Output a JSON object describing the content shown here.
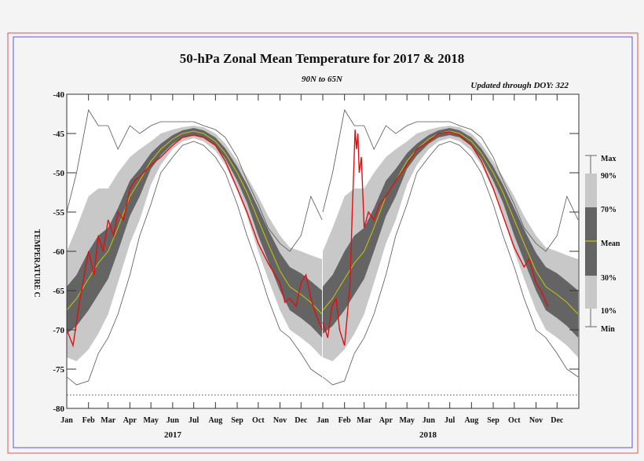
{
  "chart_data": {
    "type": "area",
    "title": "50-hPa Zonal Mean Temperature for 2017 & 2018",
    "subtitle": "90N to 65N",
    "note": "Updated through DOY: 322",
    "ylabel": "TEMPERATURE C",
    "ylim": [
      -80,
      -40
    ],
    "yticks": [
      -40,
      -45,
      -50,
      -55,
      -60,
      -65,
      -70,
      -75,
      -80
    ],
    "xticks": [
      "Jan",
      "Feb",
      "Mar",
      "Apr",
      "May",
      "Jun",
      "Jul",
      "Aug",
      "Sep",
      "Oct",
      "Nov",
      "Dec",
      "Jan",
      "Feb",
      "Mar",
      "Apr",
      "May",
      "Jun",
      "Jul",
      "Aug",
      "Sep",
      "Oct",
      "Nov",
      "Dec"
    ],
    "years": [
      "2017",
      "2018"
    ],
    "reference_line": -78.3,
    "legend": {
      "placement": "right",
      "labels": {
        "max": "Max",
        "p90": "90%",
        "p70": "70%",
        "mean": "Mean",
        "p30": "30%",
        "p10": "10%",
        "min": "Min"
      }
    },
    "colors": {
      "outer_band": "#c8c8c8",
      "inner_band": "#646464",
      "mean": "#c8c800",
      "current": "#e01010",
      "extremes": "#555555",
      "reference": "#3333dd",
      "frame_outer": "#e05555",
      "frame_inner": "#5555ee"
    },
    "climatology": {
      "doy": [
        1,
        15,
        32,
        46,
        60,
        74,
        91,
        105,
        121,
        135,
        152,
        166,
        182,
        196,
        213,
        227,
        244,
        258,
        274,
        288,
        305,
        319,
        335,
        349,
        365
      ],
      "max": [
        -55,
        -50,
        -42,
        -44,
        -44,
        -47,
        -44,
        -45,
        -44,
        -43.5,
        -43.5,
        -43.5,
        -43.5,
        -44,
        -44.5,
        -45.5,
        -48,
        -51,
        -54,
        -57,
        -59,
        -60,
        -58,
        -53,
        -56
      ],
      "p90": [
        -60,
        -57,
        -53,
        -52,
        -52,
        -50,
        -48,
        -47,
        -46,
        -45,
        -44.5,
        -44.2,
        -44,
        -44.2,
        -45,
        -46.3,
        -48.5,
        -50.5,
        -53,
        -55.5,
        -58,
        -59.5,
        -60,
        -60.5,
        -61
      ],
      "p70": [
        -64.5,
        -63,
        -60,
        -58,
        -57,
        -54.5,
        -51,
        -49.5,
        -47.5,
        -46.3,
        -45.2,
        -44.6,
        -44.3,
        -44.6,
        -45.5,
        -46.9,
        -49.2,
        -51.5,
        -54.5,
        -57.2,
        -60.2,
        -62,
        -62.8,
        -63.8,
        -65
      ],
      "mean": [
        -67.5,
        -66,
        -63.5,
        -61.5,
        -60,
        -57,
        -53,
        -51,
        -48.5,
        -47,
        -45.7,
        -45,
        -44.7,
        -45,
        -46,
        -47.5,
        -50,
        -52.5,
        -56,
        -59,
        -62.5,
        -64.5,
        -65.5,
        -66.5,
        -68
      ],
      "p30": [
        -70.5,
        -69.5,
        -67.5,
        -65.5,
        -63.5,
        -60,
        -55.5,
        -53,
        -49.5,
        -47.8,
        -46.3,
        -45.5,
        -45.2,
        -45.5,
        -46.6,
        -48.2,
        -51,
        -53.8,
        -58,
        -61.2,
        -65,
        -67.5,
        -68.5,
        -69.5,
        -71
      ],
      "p10": [
        -73.5,
        -74,
        -72.5,
        -70.5,
        -68,
        -64,
        -59,
        -56,
        -51.5,
        -49,
        -47,
        -46,
        -45.6,
        -46,
        -47.2,
        -49,
        -52.2,
        -55.5,
        -60,
        -63.5,
        -67.5,
        -70,
        -71,
        -72,
        -73.5
      ],
      "min": [
        -76,
        -77,
        -76.5,
        -73,
        -71,
        -68,
        -63,
        -58,
        -54,
        -50,
        -48,
        -46.5,
        -46,
        -46.5,
        -48,
        -50,
        -54,
        -58,
        -62,
        -66,
        -70,
        -71,
        -73,
        -75,
        -76
      ]
    },
    "series": [
      {
        "name": "2017",
        "points": [
          [
            1,
            -70
          ],
          [
            10,
            -72
          ],
          [
            20,
            -66
          ],
          [
            32,
            -60
          ],
          [
            40,
            -63
          ],
          [
            46,
            -58
          ],
          [
            53,
            -60
          ],
          [
            60,
            -56
          ],
          [
            68,
            -58
          ],
          [
            74,
            -55
          ],
          [
            82,
            -56
          ],
          [
            91,
            -52
          ],
          [
            98,
            -51
          ],
          [
            105,
            -50.5
          ],
          [
            121,
            -49
          ],
          [
            135,
            -48
          ],
          [
            152,
            -46.5
          ],
          [
            166,
            -45.5
          ],
          [
            182,
            -45.2
          ],
          [
            196,
            -45.5
          ],
          [
            213,
            -46.5
          ],
          [
            227,
            -48.5
          ],
          [
            244,
            -52
          ],
          [
            258,
            -55
          ],
          [
            274,
            -59
          ],
          [
            288,
            -61.5
          ],
          [
            298,
            -63
          ],
          [
            305,
            -64
          ],
          [
            312,
            -66.5
          ],
          [
            319,
            -66
          ],
          [
            328,
            -67
          ],
          [
            335,
            -64
          ],
          [
            342,
            -63
          ],
          [
            349,
            -66
          ],
          [
            356,
            -68
          ],
          [
            365,
            -70
          ]
        ]
      },
      {
        "name": "2018",
        "points": [
          [
            1,
            -69
          ],
          [
            8,
            -71
          ],
          [
            14,
            -67
          ],
          [
            20,
            -66
          ],
          [
            25,
            -70
          ],
          [
            32,
            -72
          ],
          [
            36,
            -68
          ],
          [
            40,
            -64
          ],
          [
            43,
            -55
          ],
          [
            45,
            -50
          ],
          [
            47,
            -44.5
          ],
          [
            49,
            -47
          ],
          [
            51,
            -45
          ],
          [
            53,
            -50
          ],
          [
            56,
            -48
          ],
          [
            60,
            -57
          ],
          [
            66,
            -55
          ],
          [
            74,
            -56
          ],
          [
            82,
            -54
          ],
          [
            91,
            -53
          ],
          [
            105,
            -51
          ],
          [
            121,
            -49
          ],
          [
            135,
            -47
          ],
          [
            152,
            -46
          ],
          [
            166,
            -45
          ],
          [
            182,
            -44.8
          ],
          [
            196,
            -45.2
          ],
          [
            213,
            -46.5
          ],
          [
            227,
            -48.5
          ],
          [
            244,
            -52
          ],
          [
            258,
            -55.5
          ],
          [
            274,
            -59.5
          ],
          [
            288,
            -62
          ],
          [
            295,
            -61
          ],
          [
            305,
            -64
          ],
          [
            312,
            -65
          ],
          [
            322,
            -67
          ]
        ]
      }
    ]
  }
}
